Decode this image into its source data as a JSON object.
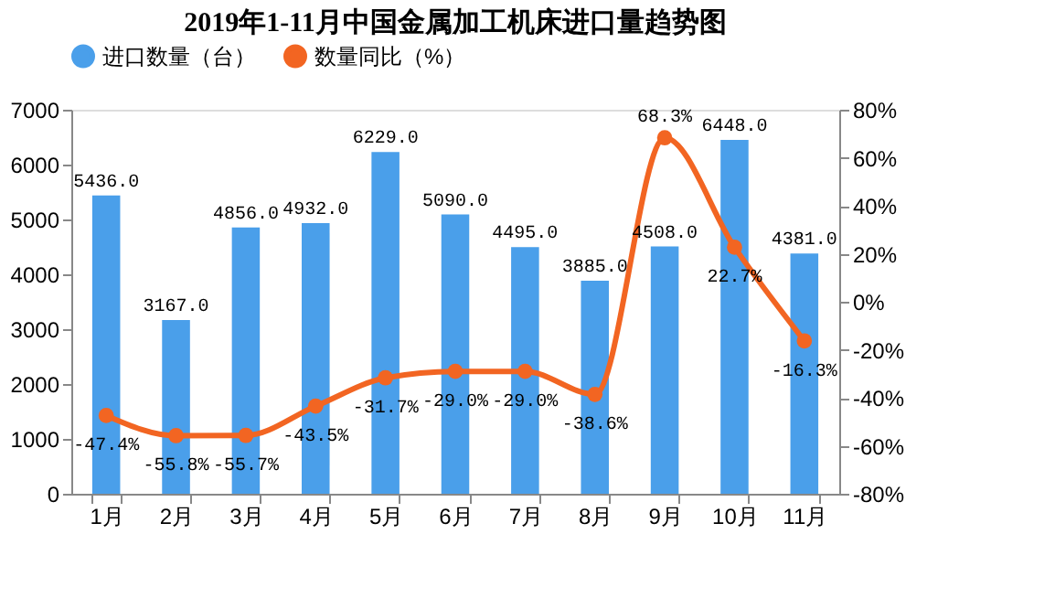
{
  "chart_data": {
    "type": "bar",
    "title": "2019年1-11月中国金属加工机床进口量趋势图",
    "categories": [
      "1月",
      "2月",
      "3月",
      "4月",
      "5月",
      "6月",
      "7月",
      "8月",
      "9月",
      "10月",
      "11月"
    ],
    "series": [
      {
        "name": "进口数量（台）",
        "color": "#4a9fea",
        "values": [
          5436,
          3167,
          4856,
          4932,
          6229,
          5090,
          4495,
          3885,
          4508,
          6448,
          4381
        ],
        "value_labels": [
          "5436.0",
          "3167.0",
          "4856.0",
          "4932.0",
          "6229.0",
          "5090.0",
          "4495.0",
          "3885.0",
          "4508.0",
          "6448.0",
          "4381.0"
        ]
      },
      {
        "name": "数量同比（%）",
        "type": "line",
        "axis": "y2",
        "color": "#f26522",
        "marker": "circle",
        "values": [
          -47.4,
          -55.8,
          -55.7,
          -43.5,
          -31.7,
          -29.0,
          -29.0,
          -38.6,
          68.3,
          22.7,
          -16.3
        ],
        "value_labels": [
          "-47.4%",
          "-55.8%",
          "-55.7%",
          "-43.5%",
          "-31.7%",
          "-29.0%",
          "-29.0%",
          "-38.6%",
          "68.3%",
          "22.7%",
          "-16.3%"
        ]
      }
    ],
    "ylim": [
      0,
      7000
    ],
    "yticks": [
      0,
      1000,
      2000,
      3000,
      4000,
      5000,
      6000,
      7000
    ],
    "y2lim": [
      -80,
      80
    ],
    "y2ticks": [
      {
        "value": -80,
        "label": "-80%"
      },
      {
        "value": -60,
        "label": "-60%"
      },
      {
        "value": -40,
        "label": "-40%"
      },
      {
        "value": -20,
        "label": "-20%"
      },
      {
        "value": 0,
        "label": "0%"
      },
      {
        "value": 20,
        "label": "20%"
      },
      {
        "value": 40,
        "label": "40%"
      },
      {
        "value": 60,
        "label": "60%"
      },
      {
        "value": 80,
        "label": "80%"
      }
    ],
    "legend": "top",
    "grid": false
  }
}
